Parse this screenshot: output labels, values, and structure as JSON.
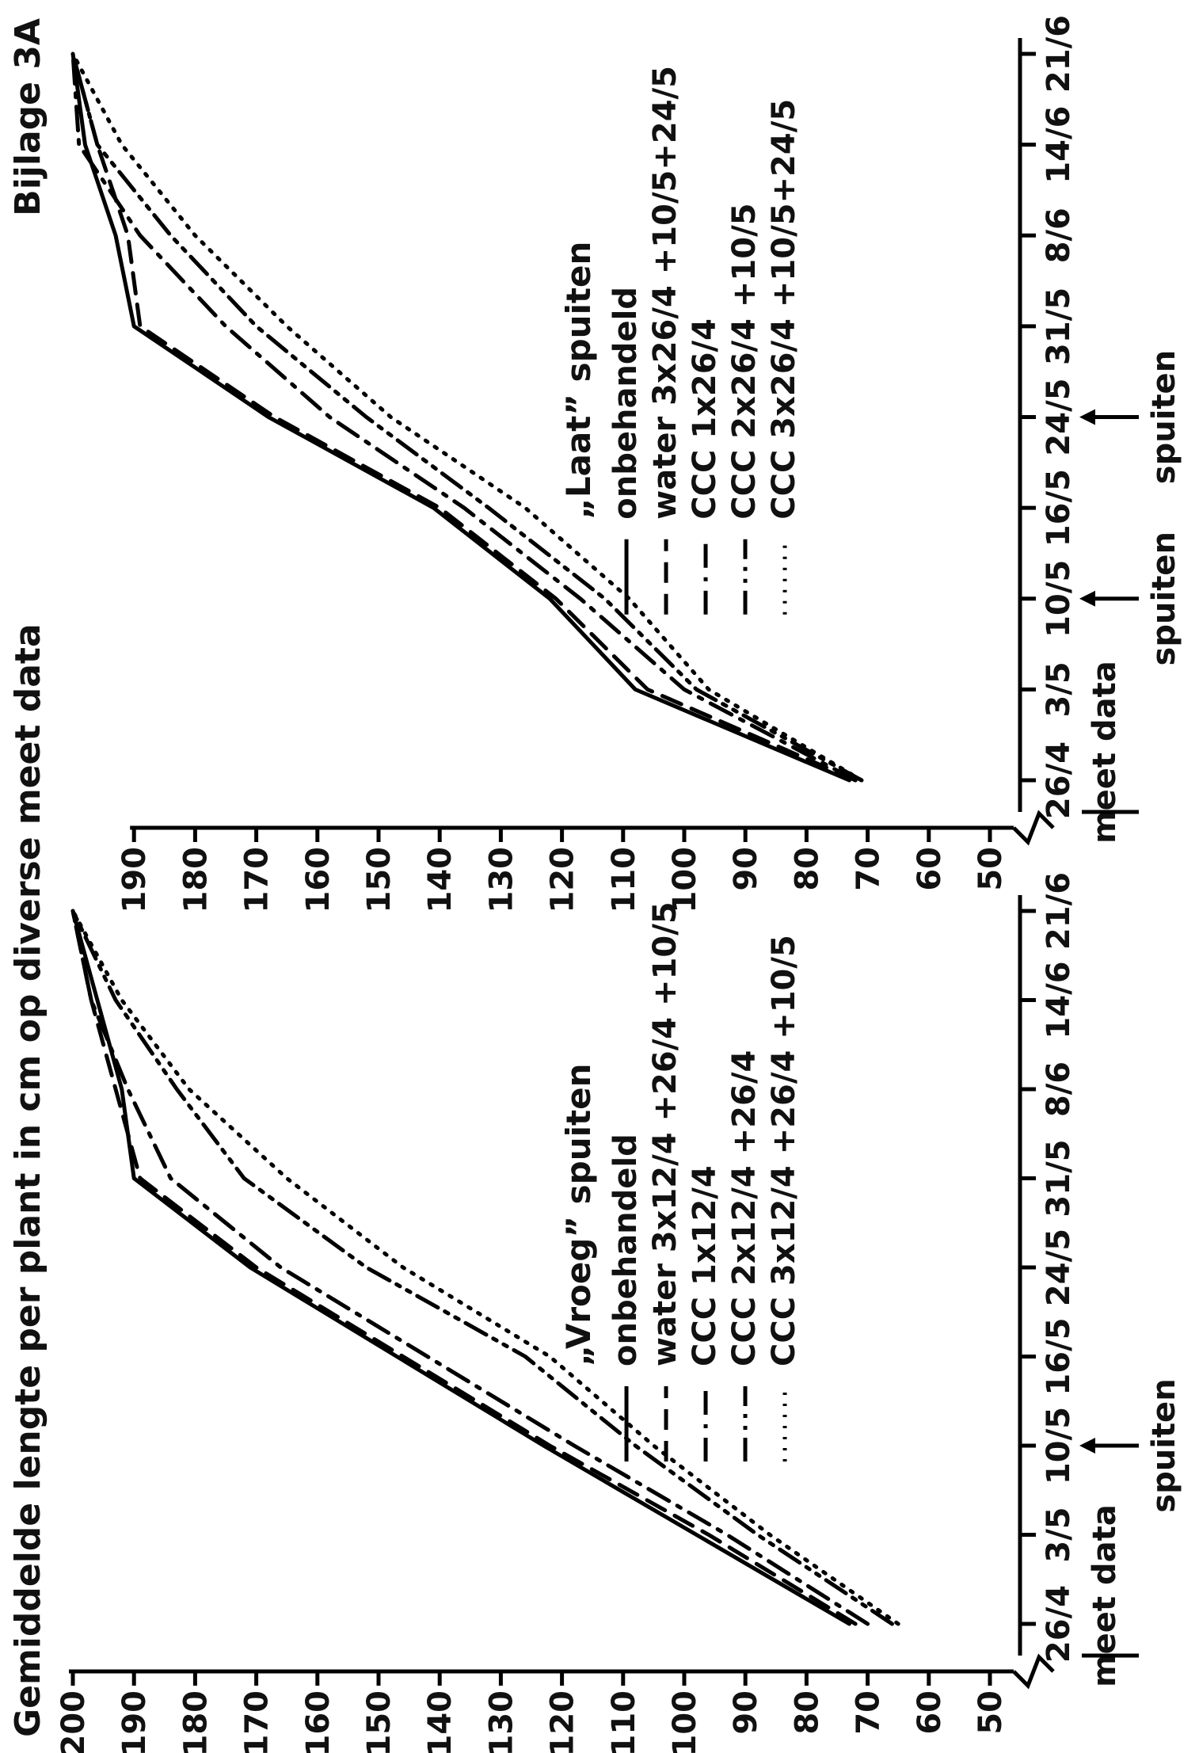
{
  "title": "Gemiddelde lengte per plant in cm op diverse meet data",
  "annex": "Bijlage 3A",
  "chart_data": [
    {
      "type": "line",
      "title": "„Vroeg” spuiten",
      "xlabel": "meet data",
      "spray_label": "spuiten",
      "spray_dates": [
        "10/5"
      ],
      "categories": [
        "26/4",
        "3/5",
        "10/5",
        "16/5",
        "24/5",
        "31/5",
        "8/6",
        "14/6",
        "21/6"
      ],
      "y_ticks": [
        200,
        190,
        180,
        170,
        160,
        150,
        140,
        130,
        120,
        110,
        100,
        90,
        80,
        70,
        60,
        50
      ],
      "ylim": [
        50,
        200
      ],
      "series": [
        {
          "name": "onbehandeld",
          "style": "solid",
          "x": [
            "26/4",
            "3/5",
            "10/5",
            "16/5",
            "24/5",
            "31/5",
            "8/6",
            "14/6",
            "21/6"
          ],
          "values": [
            73,
            98,
            123,
            147,
            171,
            190,
            192,
            196,
            200
          ]
        },
        {
          "name": "water 3x12/4 +26/4 +10/5",
          "style": "dashed",
          "x": [
            "26/4",
            "3/5",
            "10/5",
            "16/5",
            "24/5",
            "31/5",
            "8/6",
            "14/6",
            "21/6"
          ],
          "values": [
            72,
            96,
            122,
            146,
            170,
            189,
            193,
            197,
            200
          ]
        },
        {
          "name": "CCC 1x12/4",
          "style": "dashdot",
          "x": [
            "26/4",
            "3/5",
            "10/5",
            "16/5",
            "24/5",
            "31/5",
            "8/6",
            "14/6",
            "21/6"
          ],
          "values": [
            70,
            93,
            118,
            142,
            166,
            184,
            191,
            197,
            200
          ]
        },
        {
          "name": "CCC 2x12/4 +26/4",
          "style": "dashdotdot",
          "x": [
            "26/4",
            "3/5",
            "10/5",
            "16/5",
            "24/5",
            "31/5",
            "8/6",
            "14/6",
            "21/6"
          ],
          "values": [
            66,
            88,
            108,
            126,
            152,
            172,
            183,
            193,
            200
          ]
        },
        {
          "name": "CCC 3x12/4 +26/4 +10/5",
          "style": "dotted",
          "x": [
            "26/4",
            "3/5",
            "10/5",
            "16/5",
            "24/5",
            "31/5",
            "8/6",
            "14/6",
            "21/6"
          ],
          "values": [
            65,
            86,
            105,
            122,
            146,
            165,
            181,
            192,
            200
          ]
        }
      ]
    },
    {
      "type": "line",
      "title": "„Laat” spuiten",
      "xlabel": "meet data",
      "spray_label": "spuiten",
      "spray_dates": [
        "10/5",
        "24/5"
      ],
      "categories": [
        "26/4",
        "3/5",
        "10/5",
        "16/5",
        "24/5",
        "31/5",
        "8/6",
        "14/6",
        "21/6"
      ],
      "y_ticks": [
        190,
        180,
        170,
        160,
        150,
        140,
        130,
        120,
        110,
        100,
        90,
        80,
        70,
        60,
        50
      ],
      "ylim": [
        50,
        200
      ],
      "series": [
        {
          "name": "onbehandeld",
          "style": "solid",
          "x": [
            "26/4",
            "3/5",
            "10/5",
            "16/5",
            "24/5",
            "31/5",
            "8/6",
            "14/6",
            "21/6"
          ],
          "values": [
            73,
            108,
            122,
            141,
            168,
            190,
            193,
            198,
            200
          ]
        },
        {
          "name": "water 3x26/4 +10/5+24/5",
          "style": "dashed",
          "x": [
            "26/4",
            "3/5",
            "10/5",
            "16/5",
            "24/5",
            "31/5",
            "8/6",
            "14/6",
            "21/6"
          ],
          "values": [
            72,
            106,
            121,
            140,
            167,
            189,
            191,
            196,
            200
          ]
        },
        {
          "name": "CCC 1x26/4",
          "style": "dashdot",
          "x": [
            "26/4",
            "3/5",
            "10/5",
            "16/5",
            "24/5",
            "31/5",
            "8/6",
            "14/6",
            "21/6"
          ],
          "values": [
            72,
            100,
            117,
            136,
            158,
            175,
            189,
            199,
            200
          ]
        },
        {
          "name": "CCC 2x26/4 +10/5",
          "style": "dashdotdot",
          "x": [
            "26/4",
            "3/5",
            "10/5",
            "16/5",
            "24/5",
            "31/5",
            "8/6",
            "14/6",
            "21/6"
          ],
          "values": [
            71,
            98,
            113,
            132,
            152,
            170,
            184,
            196,
            200
          ]
        },
        {
          "name": "CCC 3x26/4 +10/5+24/5",
          "style": "dotted",
          "x": [
            "26/4",
            "3/5",
            "10/5",
            "16/5",
            "24/5",
            "31/5",
            "8/6",
            "14/6",
            "21/6"
          ],
          "values": [
            71,
            96,
            109,
            126,
            148,
            165,
            180,
            192,
            200
          ]
        }
      ]
    }
  ]
}
